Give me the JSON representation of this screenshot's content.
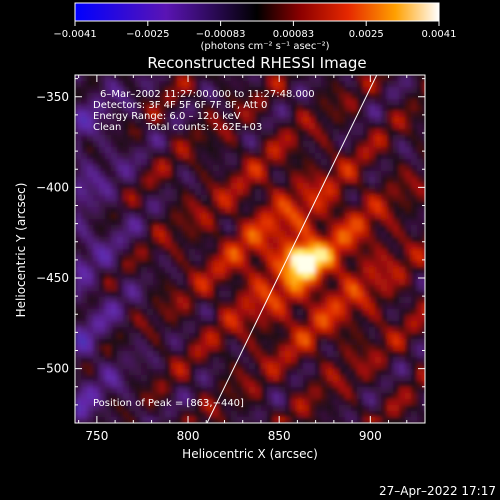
{
  "chart_data": {
    "type": "heatmap",
    "title": "Reconstructed RHESSI Image",
    "xlabel": "Heliocentric X (arcsec)",
    "ylabel": "Heliocentric Y (arcsec)",
    "xlim": [
      738,
      930
    ],
    "ylim": [
      -530,
      -338
    ],
    "xticks": [
      750,
      800,
      850,
      900
    ],
    "xtick_labels": [
      "750",
      "800",
      "850",
      "900"
    ],
    "yticks": [
      -350,
      -400,
      -450,
      -500
    ],
    "ytick_labels": [
      "−350",
      "−400",
      "−450",
      "−500"
    ],
    "colorbar": {
      "range": [
        -0.0041,
        0.0041
      ],
      "tick_labels": [
        "−0.0041",
        "−0.0025",
        "−0.00083",
        "0.00083",
        "0.0025",
        "0.0041"
      ],
      "units_label": "(photons cm⁻² s⁻¹ asec⁻²)"
    },
    "annotations": {
      "time_range": "6–Mar–2002 11:27:00.000 to 11:27:48.000",
      "detectors": "Detectors: 3F 4F 5F 6F 7F 8F, Att 0",
      "energy": "Energy Range: 6.0 – 12.0 keV",
      "clean": "Clean",
      "total_counts": "Total counts: 2.62E+03",
      "peak": "Position of Peak = [863,−440]"
    },
    "peak": {
      "x": 863,
      "y": -440
    },
    "limb_line": [
      [
        808,
        -535
      ],
      [
        905,
        -335
      ]
    ]
  },
  "footer": {
    "timestamp": "27–Apr–2022 17:17"
  }
}
